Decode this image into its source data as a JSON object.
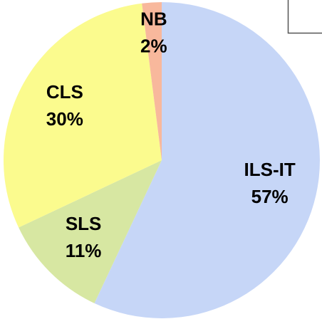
{
  "chart_data": {
    "type": "pie",
    "categories": [
      "ILS-IT",
      "SLS",
      "CLS",
      "NB"
    ],
    "values": [
      57,
      11,
      30,
      2
    ],
    "value_labels": [
      "57%",
      "11%",
      "30%",
      "2%"
    ],
    "colors": [
      "#c6d6f7",
      "#d7e7a2",
      "#fbfb8e",
      "#f8b89c"
    ]
  }
}
